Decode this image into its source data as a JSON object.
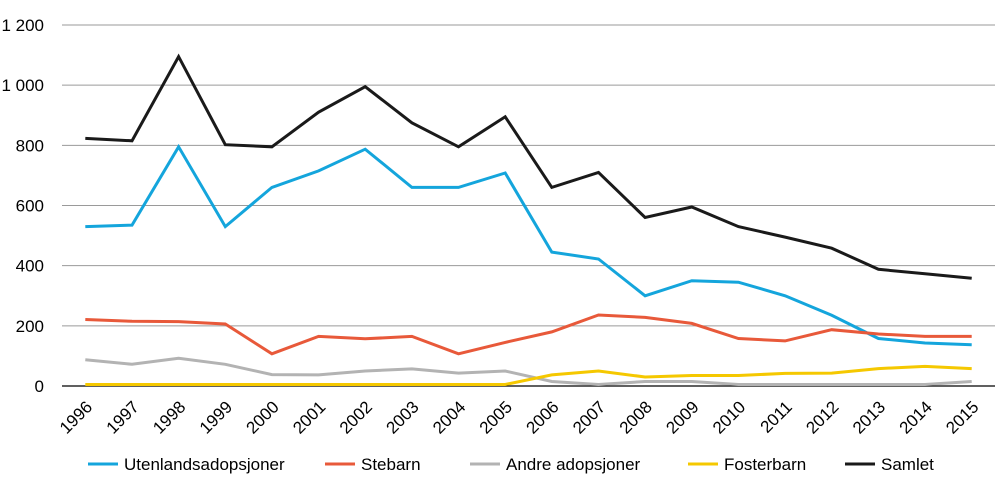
{
  "chart_data": {
    "type": "line",
    "title": "",
    "xlabel": "",
    "ylabel": "",
    "ylim": [
      0,
      1200
    ],
    "yticks": [
      0,
      200,
      400,
      600,
      800,
      1000,
      1200
    ],
    "ytick_labels": [
      "0",
      "200",
      "400",
      "600",
      "800",
      "1 000",
      "1 200"
    ],
    "grid": true,
    "legend_position": "bottom",
    "categories": [
      "1996",
      "1997",
      "1998",
      "1999",
      "2000",
      "2001",
      "2002",
      "2003",
      "2004",
      "2005",
      "2006",
      "2007",
      "2008",
      "2009",
      "2010",
      "2011",
      "2012",
      "2013",
      "2014",
      "2015"
    ],
    "series": [
      {
        "name": "Utenlandsadopsjoner",
        "color": "#14a5dc",
        "values": [
          530,
          535,
          795,
          530,
          660,
          715,
          787,
          660,
          660,
          708,
          445,
          422,
          300,
          350,
          345,
          300,
          235,
          158,
          143,
          137
        ]
      },
      {
        "name": "Stebarn",
        "color": "#e8593a",
        "values": [
          221,
          215,
          214,
          206,
          107,
          165,
          157,
          165,
          107,
          145,
          180,
          236,
          228,
          208,
          158,
          150,
          187,
          173,
          165,
          165
        ]
      },
      {
        "name": "Andre adopsjoner",
        "color": "#b3b3b3",
        "values": [
          87,
          72,
          92,
          72,
          38,
          37,
          50,
          57,
          43,
          50,
          15,
          5,
          15,
          15,
          5,
          5,
          5,
          5,
          5,
          15
        ]
      },
      {
        "name": "Fosterbarn",
        "color": "#f5c800",
        "values": [
          5,
          5,
          5,
          5,
          5,
          5,
          5,
          5,
          5,
          5,
          37,
          50,
          30,
          35,
          35,
          42,
          43,
          58,
          65,
          58
        ]
      },
      {
        "name": "Samlet",
        "color": "#1a1a1a",
        "values": [
          823,
          815,
          1095,
          802,
          795,
          910,
          995,
          875,
          795,
          895,
          660,
          710,
          560,
          595,
          530,
          495,
          458,
          388,
          373,
          358
        ]
      }
    ]
  }
}
